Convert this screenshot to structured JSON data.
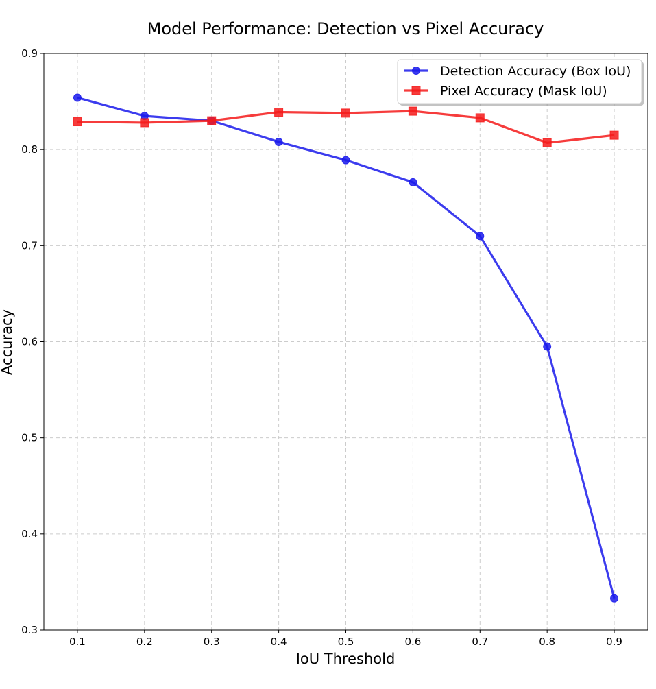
{
  "chart_data": {
    "type": "line",
    "title": "Model Performance: Detection vs Pixel Accuracy",
    "xlabel": "IoU Threshold",
    "ylabel": "Accuracy",
    "xlim": [
      0.05,
      0.95
    ],
    "ylim": [
      0.3,
      0.9
    ],
    "x": [
      0.1,
      0.2,
      0.3,
      0.4,
      0.5,
      0.6,
      0.7,
      0.8,
      0.9
    ],
    "x_tick_labels": [
      "0.1",
      "0.2",
      "0.3",
      "0.4",
      "0.5",
      "0.6",
      "0.7",
      "0.8",
      "0.9"
    ],
    "y_ticks": [
      0.3,
      0.4,
      0.5,
      0.6,
      0.7,
      0.8,
      0.9
    ],
    "y_tick_labels": [
      "0.3",
      "0.4",
      "0.5",
      "0.6",
      "0.7",
      "0.8",
      "0.9"
    ],
    "grid": true,
    "legend_position": "top-right",
    "series": [
      {
        "name": "Detection Accuracy (Box IoU)",
        "color": "#1a1aeb",
        "marker": "circle",
        "values": [
          0.854,
          0.835,
          0.83,
          0.808,
          0.789,
          0.766,
          0.71,
          0.595,
          0.333
        ]
      },
      {
        "name": "Pixel Accuracy (Mask IoU)",
        "color": "#f51a1a",
        "marker": "square",
        "values": [
          0.829,
          0.828,
          0.83,
          0.839,
          0.838,
          0.84,
          0.833,
          0.807,
          0.815
        ]
      }
    ]
  }
}
